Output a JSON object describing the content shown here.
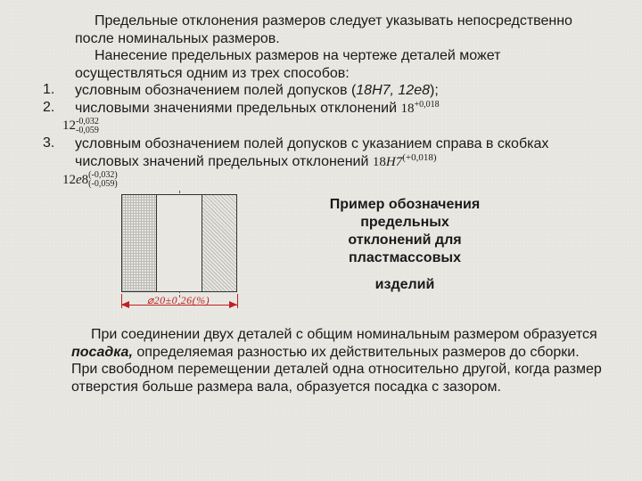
{
  "intro": {
    "p1": "Предельные отклонения размеров следует указывать непосредственно после номинальных размеров.",
    "p2": "Нанесение предельных размеров на чертеже деталей может осуществляться одним из трех способов:"
  },
  "items": {
    "n1": "1.",
    "t1a": "условным обозначением полей допусков (",
    "t1b": "18H7, 12e8",
    "t1c": ");",
    "n2": "2.",
    "t2a": "числовыми значениями предельных отклонений ",
    "t2_val": "18",
    "t2_sup": "+0,018",
    "f1_base": "12",
    "f1_top": "-0,032",
    "f1_bot": "-0,059",
    "n3": "3.",
    "t3": "условным обозначением полей допусков с указанием справа в скобках числовых значений предельных отклонений ",
    "t3_f": "18",
    "t3_fi": "H7",
    "t3_sup": "(+0,018)",
    "f2_base": "12",
    "f2_e": "e",
    "f2_8": "8",
    "f2_top": "(-0,032)",
    "f2_bot": "(-0,059)"
  },
  "figure": {
    "dim_label": "⌀20±0,26(%)",
    "caption_l1": "Пример обозначения",
    "caption_l2": "предельных",
    "caption_l3": "отклонений для",
    "caption_l4": "пластмассовых",
    "caption_l5": "изделий",
    "colors": {
      "dim": "#c02020"
    }
  },
  "closing": {
    "a": "При соединении двух деталей с общим номинальным размером образуется ",
    "b": "посадка,",
    "c": " определяемая разностью их действительных размеров до сборки. При свободном перемещении деталей одна относительно другой, когда размер отверстия больше размера вала, образуется посадка с зазором."
  }
}
